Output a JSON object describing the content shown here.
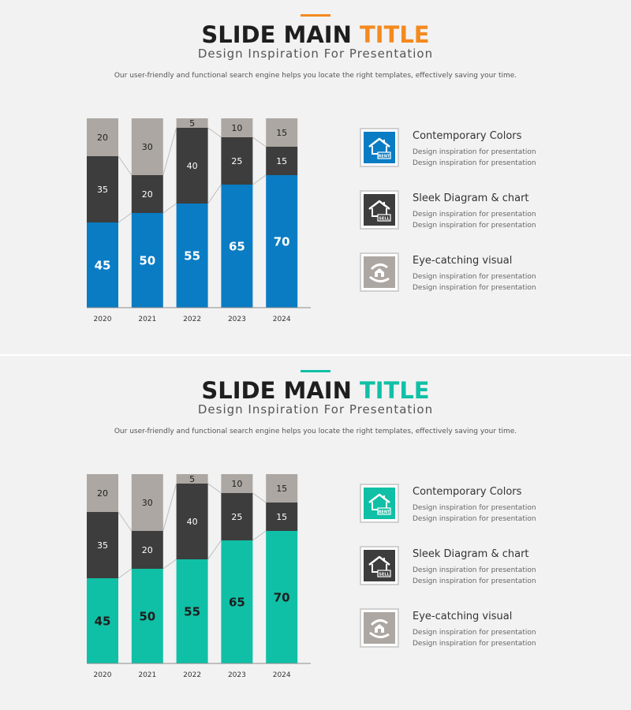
{
  "slides": [
    {
      "title_main": "SLIDE MAIN ",
      "title_accent": "TITLE",
      "subtitle": "Design Inspiration For Presentation",
      "description": "Our user-friendly and functional search engine helps you locate the right templates, effectively saving your time.",
      "accent_color": "#0a7cc4",
      "title_accent_color": "#f48a1f",
      "top_line_color": "#f48a1f",
      "features": [
        {
          "title": "Contemporary Colors",
          "line1": "Design inspiration for presentation",
          "line2": "Design inspiration for presentation",
          "icon": "house-rent-icon",
          "color": "#0a7cc4"
        },
        {
          "title": "Sleek Diagram & chart",
          "line1": "Design inspiration for presentation",
          "line2": "Design inspiration for presentation",
          "icon": "house-sell-icon",
          "color": "#3d3d3d"
        },
        {
          "title": "Eye-catching visual",
          "line1": "Design inspiration for presentation",
          "line2": "Design inspiration for presentation",
          "icon": "house-hands-icon",
          "color": "#aca7a2"
        }
      ]
    },
    {
      "title_main": "SLIDE MAIN ",
      "title_accent": "TITLE",
      "subtitle": "Design Inspiration For Presentation",
      "description": "Our user-friendly and functional search engine helps you locate the right templates, effectively saving your time.",
      "accent_color": "#10c0a6",
      "title_accent_color": "#10c0a6",
      "top_line_color": "#10c0a6",
      "features": [
        {
          "title": "Contemporary Colors",
          "line1": "Design inspiration for presentation",
          "line2": "Design inspiration for presentation",
          "icon": "house-rent-icon",
          "color": "#10c0a6"
        },
        {
          "title": "Sleek Diagram & chart",
          "line1": "Design inspiration for presentation",
          "line2": "Design inspiration for presentation",
          "icon": "house-sell-icon",
          "color": "#3d3d3d"
        },
        {
          "title": "Eye-catching visual",
          "line1": "Design inspiration for presentation",
          "line2": "Design inspiration for presentation",
          "icon": "house-hands-icon",
          "color": "#aca7a2"
        }
      ]
    }
  ],
  "icon_labels": {
    "rent": "RENT",
    "sell": "SELL"
  },
  "chart_data": [
    {
      "type": "bar",
      "stacked": true,
      "normalized_to": 100,
      "categories": [
        "2020",
        "2021",
        "2022",
        "2023",
        "2024"
      ],
      "series": [
        {
          "values": [
            45,
            50,
            55,
            65,
            70
          ],
          "color": "#0a7cc4",
          "label_color": "#ffffff"
        },
        {
          "values": [
            35,
            20,
            40,
            25,
            15
          ],
          "color": "#3d3d3d",
          "label_color": "#ffffff"
        },
        {
          "values": [
            20,
            30,
            5,
            10,
            15
          ],
          "color": "#aca7a2",
          "label_color": "#1e1e1e"
        }
      ],
      "ylim": [
        0,
        100
      ],
      "grid": false,
      "legend": "none",
      "connector_lines": true
    },
    {
      "type": "bar",
      "stacked": true,
      "normalized_to": 100,
      "categories": [
        "2020",
        "2021",
        "2022",
        "2023",
        "2024"
      ],
      "series": [
        {
          "values": [
            45,
            50,
            55,
            65,
            70
          ],
          "color": "#10c0a6",
          "label_color": "#1e1e1e"
        },
        {
          "values": [
            35,
            20,
            40,
            25,
            15
          ],
          "color": "#3d3d3d",
          "label_color": "#ffffff"
        },
        {
          "values": [
            20,
            30,
            5,
            10,
            15
          ],
          "color": "#aca7a2",
          "label_color": "#1e1e1e"
        }
      ],
      "ylim": [
        0,
        100
      ],
      "grid": false,
      "legend": "none",
      "connector_lines": true
    }
  ]
}
